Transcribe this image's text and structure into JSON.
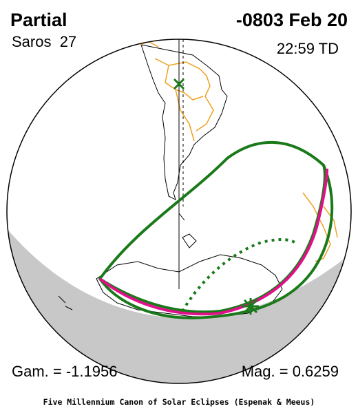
{
  "header": {
    "eclipse_type": "Partial",
    "date": "-0803 Feb 20",
    "saros": "Saros  27",
    "time": "22:59 TD"
  },
  "parameters": {
    "gamma": "Gam. = -1.1956",
    "magnitude": "Mag. = 0.6259"
  },
  "footer": "Five Millennium Canon of Solar Eclipses (Espenak & Meeus)"
}
